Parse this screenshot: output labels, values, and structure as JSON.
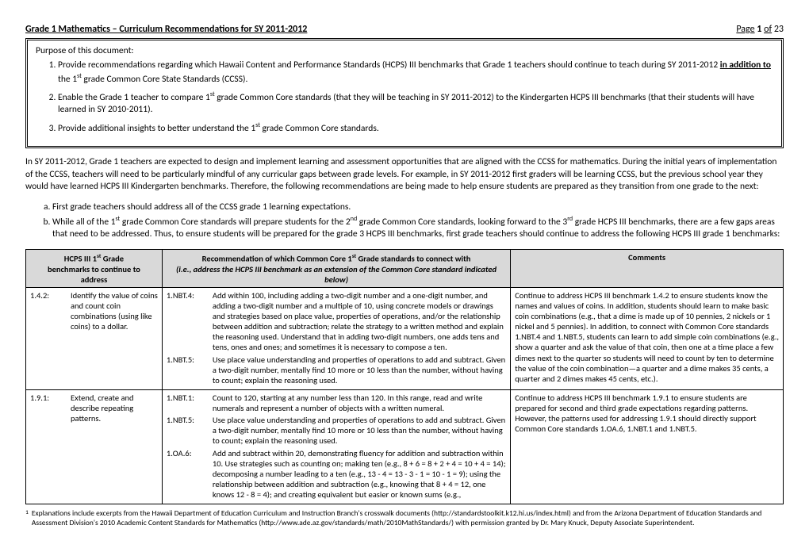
{
  "header": {
    "title": "Grade 1 Mathematics – Curriculum Recommendations for SY 2011-2012",
    "page_label": "Page",
    "page_current": "1",
    "page_of": "of",
    "page_total": "23"
  },
  "purpose": {
    "title": "Purpose of this document:",
    "items": [
      {
        "pre": "Provide recommendations regarding which Hawaii Content and Performance Standards (HCPS) III benchmarks that Grade 1 teachers should continue to teach during SY 2011-2012 ",
        "under": "in addition to",
        "post": " the 1",
        "sup": "st",
        "tail": " grade Common Core State Standards (CCSS)."
      },
      {
        "pre": "Enable the Grade 1 teacher to compare 1",
        "sup1": "st",
        "mid": " grade Common Core standards (that they will be teaching in SY 2011-2012) to the Kindergarten HCPS III benchmarks (that their students will have learned in SY 2010-2011)."
      },
      {
        "pre": "Provide additional insights to better understand the 1",
        "sup": "st",
        "tail": " grade Common Core standards."
      }
    ]
  },
  "intro": "In SY 2011-2012, Grade 1 teachers are expected to design and implement learning and assessment opportunities that are aligned with the CCSS for mathematics.  During the initial years of implementation of the CCSS, teachers will need to be particularly mindful of any curricular gaps between grade levels.  For example, in SY 2011-2012 first graders will be learning CCSS, but the previous school year they would have learned HCPS III Kindergarten benchmarks.  Therefore, the following recommendations are being made to help ensure students are prepared as they transition from one grade to the next:",
  "sublist": {
    "a": "First grade teachers should address all of the CCSS grade 1 learning expectations.",
    "b_pre": "While all of the 1",
    "b_sup1": "st",
    "b_mid1": " grade Common Core standards will prepare students for the 2",
    "b_sup2": "nd",
    "b_mid2": " grade Common Core standards, looking forward to the 3",
    "b_sup3": "rd",
    "b_tail": " grade HCPS III benchmarks, there are a few gaps areas that need to be addressed.  Thus, to ensure students will be prepared for the grade 3 HCPS III benchmarks, first grade teachers should continue to address the following HCPS III grade 1 benchmarks:"
  },
  "table": {
    "headers": {
      "col1_l1": "HCPS III 1",
      "col1_sup": "st",
      "col1_l1b": " Grade",
      "col1_l2": "benchmarks to continue to",
      "col1_l3": "address",
      "col2_l1a": "Recommendation of which Common Core 1",
      "col2_sup": "st",
      "col2_l1b": " Grade standards to connect with",
      "col2_l2": "(i.e., address the HCPS III benchmark as an extension of the Common Core standard indicated below)",
      "col3": "Comments"
    },
    "rows": [
      {
        "bench_code": "1.4.2:",
        "bench_text": "Identify the value of coins and count coin combinations (using like coins) to a dollar.",
        "stds": [
          {
            "code": "1.NBT.4:",
            "text": "Add within 100, including adding a two-digit number and a one-digit number, and adding a two-digit number and a multiple of 10, using concrete models or drawings and strategies based on place value, properties of operations, and/or the relationship between addition and subtraction; relate the strategy to a written method and explain the reasoning used. Understand that in adding two-digit numbers, one adds tens and tens, ones and ones; and sometimes it is necessary to compose a ten."
          },
          {
            "code": "1.NBT.5:",
            "text": "Use place value understanding and properties of operations to add and subtract. Given a two-digit number, mentally find 10 more or 10 less than the number, without having to count; explain the reasoning used."
          }
        ],
        "comment": "Continue to address HCPS III benchmark 1.4.2 to ensure students know the names and values of coins.  In addition, students should learn to make basic coin combinations (e.g., that a dime is made up of 10 pennies, 2 nickels or 1 nickel and 5 pennies).  In addition, to connect with Common Core standards 1.NBT.4 and 1.NBT.5, students can learn to add simple coin combinations (e.g., show a quarter and ask the value of that coin, then one at a time place a few dimes next to the quarter so students will need to count by ten to determine the value of the coin combination—a quarter and a dime makes 35 cents, a quarter and 2 dimes makes 45 cents, etc.)."
      },
      {
        "bench_code": "1.9.1:",
        "bench_text": "Extend, create and describe repeating patterns.",
        "stds": [
          {
            "code": "1.NBT.1:",
            "text": "Count to 120, starting at any number less than 120. In this range, read and write numerals and represent a number of objects with a written numeral."
          },
          {
            "code": "1.NBT.5:",
            "text": "Use place value understanding and properties of operations to add and subtract. Given a two-digit number, mentally find 10 more or 10 less than the number, without having to count; explain the reasoning used."
          },
          {
            "code": "1.OA.6:",
            "text": "Add and subtract within 20, demonstrating fluency for addition and subtraction within 10. Use strategies such as counting on; making ten (e.g., 8 + 6 = 8 + 2 + 4 = 10 + 4 = 14); decomposing a number leading to a ten (e.g., 13 - 4 = 13 - 3 - 1 = 10 - 1 = 9); using the relationship between addition and subtraction (e.g., knowing that 8 + 4 = 12, one knows 12 - 8 = 4); and creating equivalent but easier or known sums (e.g.,"
          }
        ],
        "comment": "Continue to address HCPS III benchmark 1.9.1 to ensure students are prepared for second and third grade expectations regarding patterns.  However, the patterns used for addressing 1.9.1 should directly support Common Core standards 1.OA.6, 1.NBT.1 and 1.NBT.5."
      }
    ]
  },
  "footnote": {
    "mark": "1",
    "text": "Explanations include excerpts from the Hawaii Department of Education Curriculum and Instruction Branch's crosswalk documents (http://standardstoolkit.k12.hi.us/index.html) and from the Arizona Department of Education Standards and Assessment Division's 2010 Academic Content Standards for Mathematics (http://www.ade.az.gov/standards/math/2010MathStandards/) with permission granted by Dr. Mary Knuck, Deputy Associate Superintendent."
  }
}
